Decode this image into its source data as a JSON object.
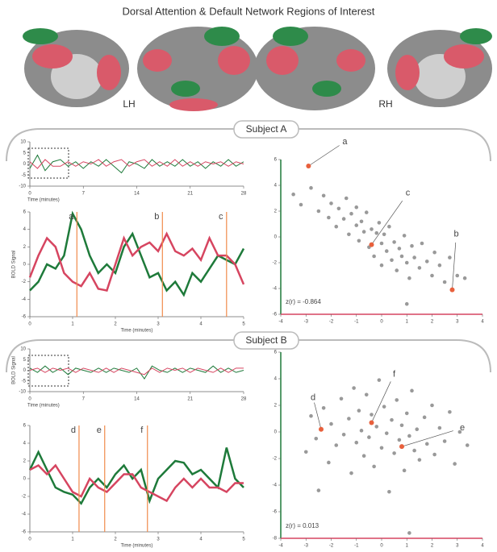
{
  "title": "Dorsal Attention & Default Network Regions of Interest",
  "brain_labels": [
    "LH",
    "RH"
  ],
  "panels": [
    {
      "label": "Subject A"
    },
    {
      "label": "Subject B"
    }
  ],
  "chart_data": [
    {
      "type": "line",
      "x_label": "Time (minutes)",
      "xlim": [
        0,
        28
      ],
      "xticks": [
        0,
        7,
        14,
        21,
        28
      ],
      "ylim": [
        -10,
        10
      ],
      "yticks": [
        -10,
        -5,
        0,
        5,
        10
      ],
      "x": [
        0,
        1,
        2,
        3,
        4,
        5,
        6,
        7,
        8,
        9,
        10,
        11,
        12,
        13,
        14,
        15,
        16,
        17,
        18,
        19,
        20,
        21,
        22,
        23,
        24,
        25,
        26,
        27,
        28
      ],
      "series": [
        {
          "color": "#1e7a3a",
          "values": [
            -2,
            4,
            -3,
            1,
            2,
            -1,
            1,
            -2,
            1,
            -1,
            2,
            -1,
            -4,
            1,
            0,
            -2,
            2,
            -1,
            1,
            -1,
            2,
            -1,
            1,
            -2,
            1,
            -1,
            2,
            -1,
            1
          ]
        },
        {
          "color": "#d64560",
          "values": [
            1,
            -2,
            2,
            -1,
            -1,
            1,
            -1,
            1,
            0,
            2,
            -1,
            1,
            2,
            -1,
            1,
            2,
            -1,
            1,
            -1,
            2,
            -1,
            1,
            -1,
            1,
            0,
            1,
            -1,
            1,
            0
          ]
        }
      ]
    },
    {
      "type": "line",
      "x_label": "Time (minutes)",
      "y_label": "BOLD Signal",
      "xlim": [
        0,
        5
      ],
      "xticks": [
        0,
        1,
        2,
        3,
        4,
        5
      ],
      "ylim": [
        -6,
        6
      ],
      "yticks": [
        -6,
        -4,
        -2,
        0,
        2,
        4,
        6
      ],
      "x": [
        0,
        0.2,
        0.4,
        0.6,
        0.8,
        1,
        1.2,
        1.4,
        1.6,
        1.8,
        2,
        2.2,
        2.4,
        2.6,
        2.8,
        3,
        3.2,
        3.4,
        3.6,
        3.8,
        4,
        4.2,
        4.4,
        4.6,
        4.8,
        5
      ],
      "series": [
        {
          "color": "#1e7a3a",
          "values": [
            -3,
            -2,
            0,
            -0.5,
            1,
            5.8,
            4,
            1,
            -1,
            0,
            -1,
            2,
            3.5,
            1,
            -1.5,
            -1,
            -3,
            -2,
            -3.5,
            -1,
            -2,
            -0.5,
            1,
            0.5,
            0,
            1.8
          ]
        },
        {
          "color": "#d64560",
          "values": [
            -1.5,
            1,
            3,
            2,
            -1,
            -2,
            -2.5,
            -1,
            -2.8,
            -3,
            0,
            3,
            1,
            2,
            2.5,
            1.5,
            3.5,
            1.5,
            1,
            1.8,
            0.5,
            3,
            1,
            1,
            0,
            -2.3
          ]
        }
      ],
      "marker_color": "#f08a4b",
      "markers": [
        {
          "x": 1.1,
          "label": "a"
        },
        {
          "x": 3.1,
          "label": "b"
        },
        {
          "x": 4.6,
          "label": "c"
        }
      ]
    },
    {
      "type": "scatter",
      "text": "z(r) = -0.864",
      "xlim": [
        -4,
        4
      ],
      "xticks": [
        -4,
        -3,
        -2,
        -1,
        0,
        1,
        2,
        3,
        4
      ],
      "ylim": [
        -6,
        6
      ],
      "yticks": [
        -6,
        -4,
        -2,
        0,
        2,
        4,
        6
      ],
      "color": "#999999",
      "x_axis_color": "#d64560",
      "y_axis_color": "#1e7a3a",
      "highlight_color": "#e8603c",
      "x": [
        -3.5,
        -3.2,
        -2.8,
        -2.5,
        -2.3,
        -2.1,
        -2,
        -1.8,
        -1.7,
        -1.5,
        -1.4,
        -1.3,
        -1.2,
        -1,
        -1,
        -0.9,
        -0.8,
        -0.7,
        -0.6,
        -0.5,
        -0.4,
        -0.3,
        -0.2,
        -0.1,
        0,
        0,
        0.1,
        0.2,
        0.3,
        0.4,
        0.5,
        0.6,
        0.7,
        0.8,
        0.9,
        1,
        1.1,
        1.2,
        1.3,
        1.5,
        1.6,
        1.8,
        2,
        2.1,
        2.3,
        2.5,
        2.7,
        3,
        3.3,
        1
      ],
      "y": [
        3.3,
        2.5,
        3.8,
        2,
        3.2,
        1.5,
        2.6,
        0.8,
        2.2,
        1.4,
        3,
        0.2,
        1.8,
        0.9,
        2.3,
        -0.3,
        1.2,
        0.4,
        1.9,
        -0.8,
        0.6,
        -1.5,
        0.3,
        1.1,
        -0.5,
        -2.2,
        0.2,
        -1.1,
        0.8,
        -1.8,
        -0.4,
        -2.6,
        -0.9,
        -1.5,
        0.1,
        -2,
        -3.2,
        -0.7,
        -1.6,
        -2.4,
        -0.5,
        -1.9,
        -3,
        -1.2,
        -2.2,
        -3.5,
        -1.6,
        -3,
        -3.2,
        -5.2
      ],
      "annotations": [
        {
          "label": "a",
          "x": -2.9,
          "y": 5.5
        },
        {
          "label": "c",
          "x": -0.4,
          "y": -0.6
        },
        {
          "label": "b",
          "x": 2.8,
          "y": -4.1
        }
      ]
    },
    {
      "type": "line",
      "x_label": "Time (minutes)",
      "y_label": "BOLD Signal",
      "xlim": [
        0,
        28
      ],
      "xticks": [
        0,
        7,
        14,
        21,
        28
      ],
      "ylim": [
        -10,
        10
      ],
      "yticks": [
        -10,
        -5,
        0,
        5,
        10
      ],
      "x": [
        0,
        1,
        2,
        3,
        4,
        5,
        6,
        7,
        8,
        9,
        10,
        11,
        12,
        13,
        14,
        15,
        16,
        17,
        18,
        19,
        20,
        21,
        22,
        23,
        24,
        25,
        26,
        27,
        28
      ],
      "series": [
        {
          "color": "#1e7a3a",
          "values": [
            1,
            -1,
            2,
            -1,
            1,
            -2,
            1,
            0,
            -1,
            1,
            -1,
            1,
            0,
            -1,
            1,
            -4,
            2,
            0,
            -1,
            1,
            -1,
            1,
            0,
            -1,
            2,
            -1,
            1,
            -1,
            0
          ]
        },
        {
          "color": "#d64560",
          "values": [
            0,
            1,
            -1,
            1,
            0,
            1,
            -1,
            1,
            0,
            -1,
            1,
            -1,
            1,
            0,
            -1,
            -2,
            1,
            -1,
            1,
            0,
            1,
            -1,
            1,
            0,
            -1,
            1,
            -1,
            1,
            1
          ]
        }
      ]
    },
    {
      "type": "line",
      "x_label": "Time (minutes)",
      "xlim": [
        0,
        5
      ],
      "xticks": [
        0,
        1,
        2,
        3,
        4,
        5
      ],
      "ylim": [
        -6,
        6
      ],
      "yticks": [
        -6,
        -4,
        -2,
        0,
        2,
        4,
        6
      ],
      "x": [
        0,
        0.2,
        0.4,
        0.6,
        0.8,
        1,
        1.2,
        1.4,
        1.6,
        1.8,
        2,
        2.2,
        2.4,
        2.6,
        2.8,
        3,
        3.2,
        3.4,
        3.6,
        3.8,
        4,
        4.2,
        4.4,
        4.6,
        4.8,
        5
      ],
      "series": [
        {
          "color": "#1e7a3a",
          "values": [
            1,
            3,
            1,
            -1,
            -1.5,
            -1.8,
            -2.8,
            -1,
            0,
            -1,
            0.5,
            1.5,
            0,
            1,
            -2.5,
            0,
            1,
            2,
            1.8,
            0.5,
            1,
            0,
            -1,
            3.5,
            0,
            -1
          ]
        },
        {
          "color": "#d64560",
          "values": [
            1,
            1.5,
            0.5,
            1.5,
            0,
            -1.5,
            -2,
            0,
            -1,
            -1.5,
            -0.5,
            0.5,
            0.5,
            -1,
            -1.5,
            -2,
            -2.5,
            -1,
            0,
            -1,
            0,
            -1,
            -1,
            -1.5,
            -0.5,
            -0.5
          ]
        }
      ],
      "marker_color": "#f08a4b",
      "markers": [
        {
          "x": 1.15,
          "label": "d"
        },
        {
          "x": 1.75,
          "label": "e"
        },
        {
          "x": 2.75,
          "label": "f"
        }
      ]
    },
    {
      "type": "scatter",
      "text": "z(r) = 0.013",
      "xlim": [
        -4,
        4
      ],
      "xticks": [
        -4,
        -3,
        -2,
        -1,
        0,
        1,
        2,
        3,
        4
      ],
      "ylim": [
        -8,
        6
      ],
      "yticks": [
        -8,
        -6,
        -4,
        -2,
        0,
        2,
        4,
        6
      ],
      "color": "#999999",
      "x_axis_color": "#d64560",
      "y_axis_color": "#1e7a3a",
      "highlight_color": "#e8603c",
      "x": [
        -3,
        -2.8,
        -2.6,
        -2.3,
        -2.1,
        -2,
        -1.8,
        -1.6,
        -1.5,
        -1.3,
        -1.2,
        -1.1,
        -1,
        -0.9,
        -0.8,
        -0.7,
        -0.6,
        -0.5,
        -0.4,
        -0.3,
        -0.2,
        -0.1,
        0,
        0.1,
        0.2,
        0.3,
        0.4,
        0.5,
        0.6,
        0.7,
        0.8,
        0.9,
        1,
        1.1,
        1.2,
        1.3,
        1.4,
        1.5,
        1.7,
        1.8,
        2,
        2.1,
        2.3,
        2.5,
        2.7,
        2.9,
        3.1,
        3.4,
        1.1,
        -2.5
      ],
      "y": [
        -1.5,
        1.2,
        -0.5,
        1.8,
        -2.3,
        0.6,
        -1,
        2.5,
        -0.2,
        1,
        -3.1,
        3.3,
        -0.8,
        1.6,
        0.1,
        -1.8,
        2.8,
        -0.4,
        1.3,
        -2.6,
        0.4,
        3.9,
        -1.2,
        1.9,
        -0.1,
        -4.5,
        0.9,
        -1.6,
        2.4,
        -0.6,
        0.5,
        -2.9,
        1.4,
        -0.3,
        3.1,
        -1.4,
        0.2,
        -2.1,
        1.1,
        -0.9,
        2,
        -1.7,
        0.3,
        -0.7,
        1.5,
        -2.4,
        0,
        -1,
        -7.6,
        -4.4
      ],
      "annotations": [
        {
          "label": "d",
          "x": -2.4,
          "y": 0.2
        },
        {
          "label": "f",
          "x": -0.4,
          "y": 0.7
        },
        {
          "label": "e",
          "x": 0.8,
          "y": -1.1
        }
      ]
    }
  ]
}
